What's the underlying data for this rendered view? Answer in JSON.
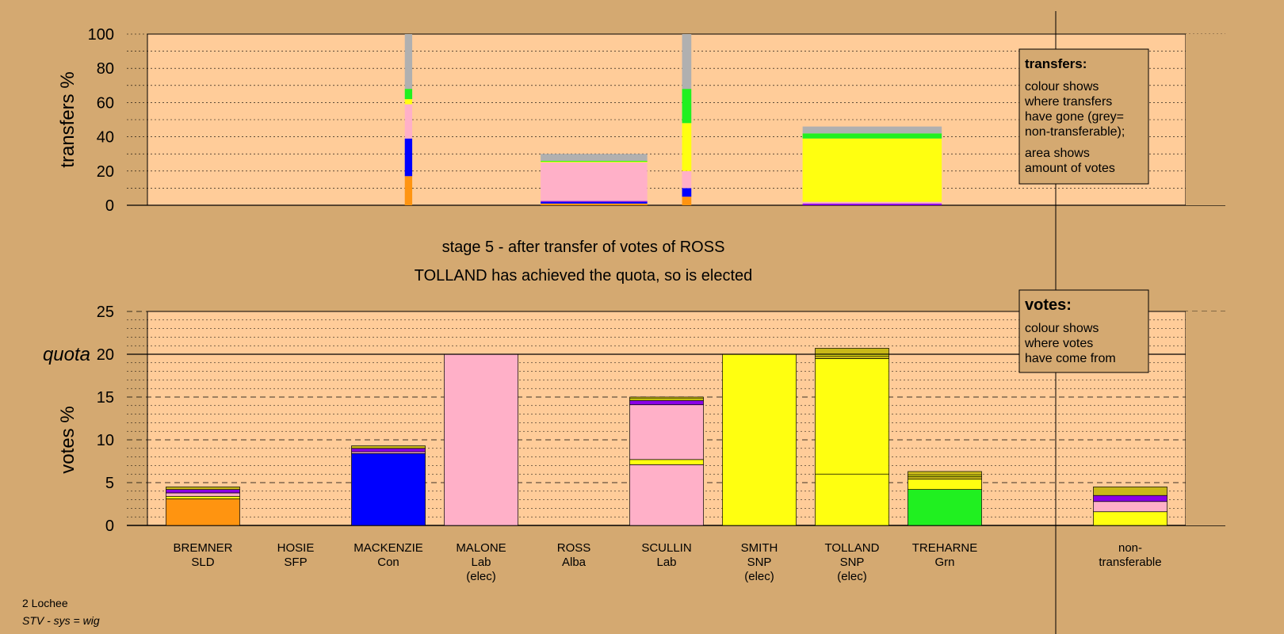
{
  "stage_title": "stage 5 - after transfer of votes of ROSS",
  "stage_subtitle": "TOLLAND has achieved the quota, so is elected",
  "transfers_legend": {
    "title": "transfers:",
    "lines_a": [
      "colour shows",
      "where transfers",
      "have gone (grey=",
      "non-transferable);"
    ],
    "lines_b": [
      "area shows",
      "amount of votes"
    ]
  },
  "votes_legend": {
    "title": "votes:",
    "lines": [
      "colour shows",
      "where votes",
      "have come from"
    ]
  },
  "footer": {
    "ward": "2 Lochee",
    "system": "STV - sys = wig"
  },
  "colors": {
    "SLD": "#ff9410",
    "SFP": "#0000ff",
    "Con": "#0000ff",
    "Lab": "#ffb0c8",
    "Alba": "#8a00e6",
    "SNP": "#ffff10",
    "Grn": "#20f020",
    "NT": "#b0b0b0",
    "olive": "#c8b818",
    "plot_bg": "#ffcc99",
    "page_bg": "#d4a971"
  },
  "chart_data": [
    {
      "type": "bar",
      "title": "stage 5 - after transfer of votes of ROSS",
      "ylabel": "transfers %",
      "ylim": [
        0,
        100
      ],
      "yticks": [
        0,
        20,
        40,
        60,
        80,
        100
      ],
      "bars": [
        {
          "name": "transfers-hosie",
          "x_center": 3.2,
          "width_units": 0.08,
          "segments": [
            {
              "party": "SLD",
              "value": 17
            },
            {
              "party": "Con",
              "value": 22
            },
            {
              "party": "Lab",
              "value": 20
            },
            {
              "party": "SNP",
              "value": 3
            },
            {
              "party": "Grn",
              "value": 6
            },
            {
              "party": "NT",
              "value": 32
            }
          ]
        },
        {
          "name": "transfers-mackenzie",
          "x_center": 5.2,
          "width_units": 1.15,
          "segments": [
            {
              "party": "SLD",
              "value": 1
            },
            {
              "party": "Con",
              "value": 1
            },
            {
              "party": "Alba",
              "value": 0.5
            },
            {
              "party": "Lab",
              "value": 22.5
            },
            {
              "party": "SNP",
              "value": 0.5
            },
            {
              "party": "Grn",
              "value": 0.5
            },
            {
              "party": "NT",
              "value": 4
            }
          ]
        },
        {
          "name": "transfers-ross-alba",
          "x_center": 6.2,
          "width_units": 0.1,
          "segments": [
            {
              "party": "SLD",
              "value": 5
            },
            {
              "party": "Con",
              "value": 5
            },
            {
              "party": "Lab",
              "value": 10
            },
            {
              "party": "SNP",
              "value": 28
            },
            {
              "party": "Grn",
              "value": 20
            },
            {
              "party": "NT",
              "value": 32
            }
          ]
        },
        {
          "name": "transfers-scullin",
          "x_center": 8.2,
          "width_units": 1.5,
          "segments": [
            {
              "party": "Alba",
              "value": 1
            },
            {
              "party": "Lab",
              "value": 1
            },
            {
              "party": "SNP",
              "value": 37
            },
            {
              "party": "Grn",
              "value": 3
            },
            {
              "party": "NT",
              "value": 4
            }
          ]
        }
      ]
    },
    {
      "type": "bar",
      "ylabel": "votes %",
      "ylim": [
        0,
        25
      ],
      "yticks": [
        0,
        5,
        10,
        15,
        20,
        25
      ],
      "quota": 20,
      "quota_label": "quota",
      "candidates": [
        {
          "name": "BREMNER",
          "party": "SLD",
          "elec": "",
          "segments": [
            {
              "color": "SLD",
              "value": 3.1
            },
            {
              "color": "SNP",
              "value": 0.3
            },
            {
              "color": "Lab",
              "value": 0.4
            },
            {
              "color": "Alba",
              "value": 0.4
            },
            {
              "color": "olive",
              "value": 0.3
            }
          ]
        },
        {
          "name": "HOSIE",
          "party": "SFP",
          "elec": "",
          "segments": []
        },
        {
          "name": "MACKENZIE",
          "party": "Con",
          "elec": "",
          "segments": [
            {
              "color": "Con",
              "value": 8.4
            },
            {
              "color": "Lab",
              "value": 0.2
            },
            {
              "color": "Alba",
              "value": 0.4
            },
            {
              "color": "olive",
              "value": 0.3
            }
          ]
        },
        {
          "name": "MALONE",
          "party": "Lab",
          "elec": "(elec)",
          "segments": [
            {
              "color": "Lab",
              "value": 20
            }
          ]
        },
        {
          "name": "ROSS",
          "party": "Alba",
          "elec": "",
          "segments": []
        },
        {
          "name": "SCULLIN",
          "party": "Lab",
          "elec": "",
          "segments": [
            {
              "color": "Lab",
              "value": 7.1
            },
            {
              "color": "SNP",
              "value": 0.6
            },
            {
              "color": "Lab",
              "value": 6.4
            },
            {
              "color": "Alba",
              "value": 0.5
            },
            {
              "color": "SNP",
              "value": 0.2
            },
            {
              "color": "olive",
              "value": 0.2
            }
          ]
        },
        {
          "name": "SMITH",
          "party": "SNP",
          "elec": "(elec)",
          "segments": [
            {
              "color": "SNP",
              "value": 20
            }
          ]
        },
        {
          "name": "TOLLAND",
          "party": "SNP",
          "elec": "(elec)",
          "segments": [
            {
              "color": "SNP",
              "value": 6
            },
            {
              "color": "SNP",
              "value": 13.5
            },
            {
              "color": "olive",
              "value": 0.3
            },
            {
              "color": "SNP",
              "value": 0.2
            },
            {
              "color": "olive",
              "value": 0.7
            }
          ]
        },
        {
          "name": "TREHARNE",
          "party": "Grn",
          "elec": "",
          "segments": [
            {
              "color": "Grn",
              "value": 4.2
            },
            {
              "color": "SNP",
              "value": 1.2
            },
            {
              "color": "olive",
              "value": 0.3
            },
            {
              "color": "SNP",
              "value": 0.2
            },
            {
              "color": "olive",
              "value": 0.4
            }
          ]
        }
      ],
      "nontransferable": {
        "label_lines": [
          "non-",
          "transferable"
        ],
        "segments": [
          {
            "color": "SNP",
            "value": 1.6
          },
          {
            "color": "Lab",
            "value": 1.2
          },
          {
            "color": "Alba",
            "value": 0.7
          },
          {
            "color": "olive",
            "value": 1.0
          }
        ]
      }
    }
  ]
}
